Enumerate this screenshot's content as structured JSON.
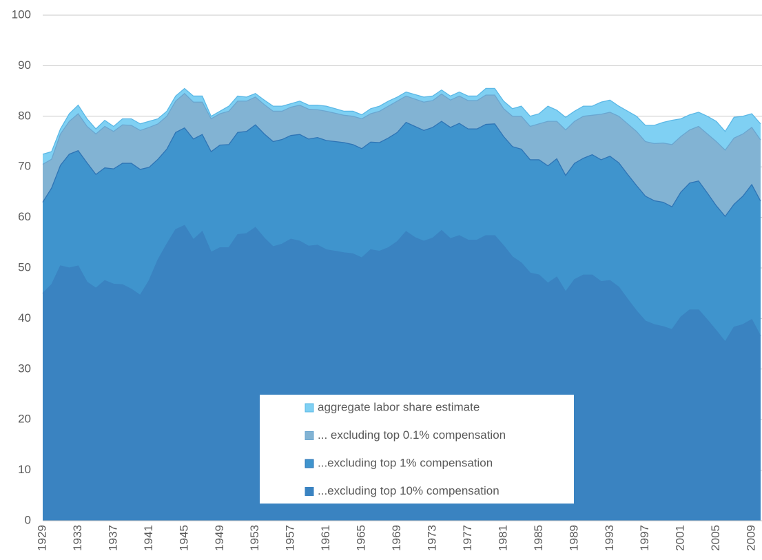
{
  "chart_data": {
    "type": "area",
    "categories": [
      "1929",
      null,
      null,
      null,
      "1933",
      null,
      null,
      null,
      "1937",
      null,
      null,
      null,
      "1941",
      null,
      null,
      null,
      "1945",
      null,
      null,
      null,
      "1949",
      null,
      null,
      null,
      "1953",
      null,
      null,
      null,
      "1957",
      null,
      null,
      null,
      "1961",
      null,
      null,
      null,
      "1965",
      null,
      null,
      null,
      "1969",
      null,
      null,
      null,
      "1973",
      null,
      null,
      null,
      "1977",
      null,
      null,
      null,
      "1981",
      null,
      null,
      null,
      "1985",
      null,
      null,
      null,
      "1989",
      null,
      null,
      null,
      "1993",
      null,
      null,
      null,
      "1997",
      null,
      null,
      null,
      "2001",
      null,
      null,
      null,
      "2005",
      null,
      null,
      null,
      "2009",
      null
    ],
    "series": [
      {
        "name": "aggregate labor share estimate",
        "color": "#7fd0f3",
        "line": "#5bb8e6",
        "values": [
          72.5,
          73,
          77.5,
          80.5,
          82.2,
          79.5,
          77.5,
          79.2,
          78,
          79.5,
          79.5,
          78.5,
          79,
          79.5,
          81,
          84,
          85.5,
          84,
          84,
          80,
          81,
          82,
          84,
          83.8,
          84.5,
          83.2,
          82,
          82,
          82.5,
          83,
          82.2,
          82.2,
          82,
          81.5,
          81,
          81,
          80.3,
          81.5,
          82,
          83,
          83.8,
          84.8,
          84.3,
          83.8,
          84,
          85.2,
          84,
          84.8,
          84,
          84,
          85.5,
          85.5,
          83,
          81.5,
          82,
          80,
          80.5,
          82,
          81.2,
          79.8,
          81,
          82,
          82,
          82.8,
          83.2,
          82,
          81,
          80,
          78.2,
          78.2,
          78.8,
          79.2,
          79.5,
          80.3,
          80.8,
          80,
          79,
          77,
          79.8,
          80,
          80.5,
          78.5
        ]
      },
      {
        "name": "... excluding top 0.1% compensation",
        "color": "#82b3d3",
        "line": "#6aa6d0",
        "values": [
          70.5,
          71.5,
          76.5,
          79,
          80.5,
          78,
          76.5,
          78,
          77,
          78.3,
          78.2,
          77.2,
          77.8,
          78.5,
          80,
          83,
          84.5,
          82.8,
          82.8,
          79.5,
          80.5,
          81,
          83,
          83,
          83.8,
          82.3,
          81,
          81,
          81.8,
          82.2,
          81.4,
          81.3,
          81,
          80.6,
          80.2,
          80,
          79.5,
          80.5,
          81,
          82,
          83,
          84,
          83.4,
          82.8,
          83.1,
          84.4,
          83.2,
          84,
          83.1,
          83.1,
          84.2,
          84.2,
          81.5,
          80,
          80,
          78,
          78.5,
          79,
          79,
          77.3,
          79,
          80,
          80.2,
          80.4,
          80.8,
          80,
          78.5,
          77,
          75,
          74.6,
          74.7,
          74.4,
          76,
          77.3,
          78,
          76.5,
          75,
          73.3,
          75.7,
          76.5,
          77.8,
          75.3
        ]
      },
      {
        "name": "...excluding top 1% compensation",
        "color": "#3f94cd",
        "line": "#2e74b5",
        "values": [
          63,
          65.8,
          70.3,
          72.5,
          73.2,
          70.8,
          68.5,
          69.8,
          69.6,
          70.7,
          70.7,
          69.5,
          69.9,
          71.5,
          73.5,
          76.8,
          77.7,
          75.5,
          76.4,
          73,
          74.3,
          74.4,
          76.8,
          77,
          78.3,
          76.5,
          75,
          75.4,
          76.2,
          76.4,
          75.5,
          75.8,
          75.2,
          75,
          74.8,
          74.4,
          73.6,
          74.9,
          74.8,
          75.7,
          76.8,
          78.8,
          78,
          77.2,
          77.8,
          79,
          77.8,
          78.6,
          77.5,
          77.5,
          78.4,
          78.5,
          76,
          74,
          73.5,
          71.4,
          71.4,
          70.2,
          71.6,
          68.3,
          70.7,
          71.7,
          72.4,
          71.4,
          72.1,
          70.8,
          68.5,
          66.3,
          64.2,
          63.3,
          63,
          62.1,
          65,
          66.8,
          67.2,
          64.8,
          62.3,
          60.2,
          62.6,
          64.2,
          66.5,
          63.2
        ]
      },
      {
        "name": "...excluding top 10% compensation",
        "color": "#3a83c1",
        "line": "#3a83c1",
        "values": [
          45,
          46.7,
          50.4,
          50,
          50.4,
          47.2,
          46,
          47.5,
          46.8,
          46.7,
          45.8,
          44.6,
          47.5,
          51.6,
          54.7,
          57.6,
          58.4,
          55.6,
          57.2,
          53.1,
          54,
          54,
          56.6,
          56.8,
          58,
          55.9,
          54.2,
          54.7,
          55.7,
          55.3,
          54.3,
          54.5,
          53.6,
          53.3,
          53,
          52.8,
          52,
          53.6,
          53.3,
          54,
          55.2,
          57.2,
          56,
          55.3,
          55.9,
          57.4,
          55.8,
          56.4,
          55.5,
          55.5,
          56.4,
          56.4,
          54.4,
          52.2,
          51,
          49,
          48.6,
          47,
          48.2,
          45.3,
          47.7,
          48.6,
          48.6,
          47.3,
          47.5,
          46.2,
          43.8,
          41.5,
          39.5,
          38.8,
          38.4,
          37.8,
          40.3,
          41.7,
          41.7,
          39.7,
          37.6,
          35.4,
          38.3,
          38.8,
          39.8,
          36.5
        ]
      }
    ],
    "ylim": [
      0,
      100
    ],
    "yticks": [
      0,
      10,
      20,
      30,
      40,
      50,
      60,
      70,
      80,
      90,
      100
    ],
    "grid": true,
    "legend": "bottom"
  }
}
